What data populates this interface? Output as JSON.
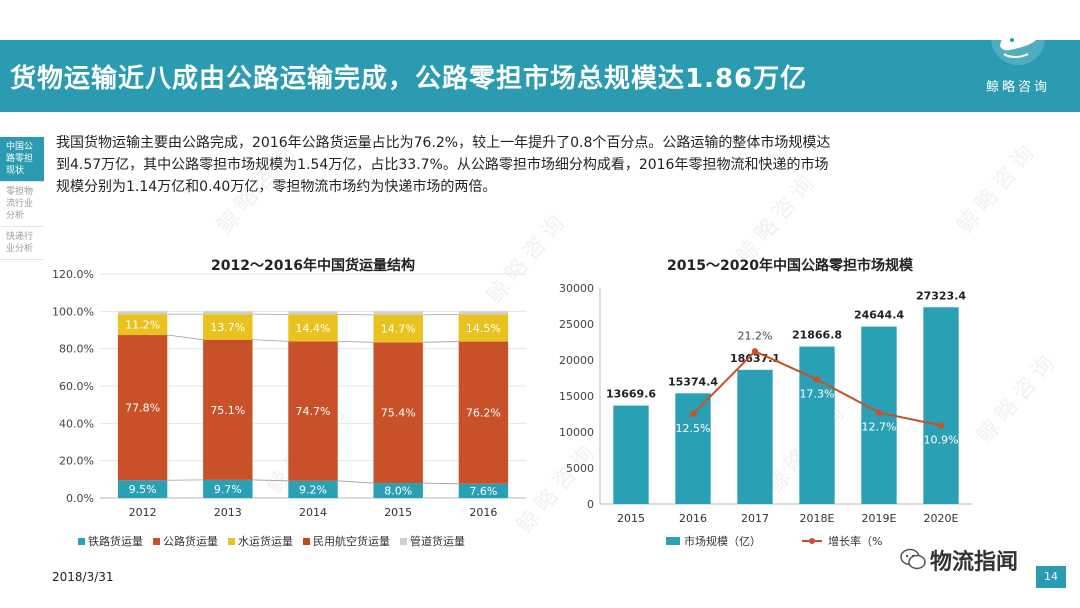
{
  "header": {
    "title": "货物运输近八成由公路运输完成，公路零担市场总规模达1.86万亿",
    "logo_text": "鲸略咨询"
  },
  "side_nav": [
    {
      "label": "中国公路零担现状",
      "active": true
    },
    {
      "label": "零担物流行业分析",
      "active": false
    },
    {
      "label": "快递行业分析",
      "active": false
    }
  ],
  "intro": {
    "line1": "我国货物运输主要由公路完成，2016年公路货运量占比为76.2%，较上一年提升了0.8个百分点。公路运输的整体市场规模达",
    "line2": "到4.57万亿，其中公路零担市场规模为1.54万亿，占比33.7%。从公路零担市场细分构成看，2016年零担物流和快递的市场",
    "line3": "规模分别为1.14万亿和0.40万亿，零担物流市场约为快递市场的两倍。"
  },
  "footer": {
    "date": "2018/3/31",
    "page_number": "14",
    "badge": "物流指闻"
  },
  "watermark": "鲸略咨询",
  "chart_data": [
    {
      "type": "bar",
      "stacked": true,
      "percent": true,
      "title": "2012～2016年中国货运量结构",
      "categories": [
        "2012",
        "2013",
        "2014",
        "2015",
        "2016"
      ],
      "yticks": [
        "0.0%",
        "20.0%",
        "40.0%",
        "60.0%",
        "80.0%",
        "100.0%",
        "120.0%"
      ],
      "ylim": [
        0,
        120
      ],
      "series": [
        {
          "name": "铁路货运量",
          "color": "#2aa0b5",
          "values": [
            9.5,
            9.7,
            9.2,
            8.0,
            7.6
          ],
          "labels": [
            "9.5%",
            "9.7%",
            "9.2%",
            "8.0%",
            "7.6%"
          ]
        },
        {
          "name": "公路货运量",
          "color": "#c8512a",
          "values": [
            77.8,
            75.1,
            74.7,
            75.4,
            76.2
          ],
          "labels": [
            "77.8%",
            "75.1%",
            "74.7%",
            "75.4%",
            "76.2%"
          ]
        },
        {
          "name": "水运货运量",
          "color": "#e8c21e",
          "values": [
            11.2,
            13.7,
            14.4,
            14.7,
            14.5
          ],
          "labels": [
            "11.2%",
            "13.7%",
            "14.4%",
            "14.7%",
            "14.5%"
          ]
        },
        {
          "name": "民用航空货运量",
          "color": "#b84a24",
          "values": [
            0.0,
            0.0,
            0.0,
            0.0,
            0.0
          ],
          "labels": []
        },
        {
          "name": "管道货运量",
          "color": "#cfcfcf",
          "values": [
            1.5,
            1.5,
            1.7,
            1.9,
            1.7
          ],
          "labels": []
        }
      ]
    },
    {
      "type": "bar+line",
      "title": "2015～2020年中国公路零担市场规模",
      "categories": [
        "2015",
        "2016",
        "2017",
        "2018E",
        "2019E",
        "2020E"
      ],
      "yticks": [
        "0",
        "5000",
        "10000",
        "15000",
        "20000",
        "25000",
        "30000"
      ],
      "ylim": [
        0,
        30000
      ],
      "bar_series": {
        "name": "市场规模（亿）",
        "color": "#2aa0b5",
        "values": [
          13669.6,
          15374.4,
          18637.1,
          21866.8,
          24644.4,
          27323.4
        ],
        "labels": [
          "13669.6",
          "15374.4",
          "18637.1",
          "21866.8",
          "24644.4",
          "27323.4"
        ]
      },
      "line_series": {
        "name": "增长率（%）",
        "color": "#c8512a",
        "values": [
          null,
          12.5,
          21.2,
          17.3,
          12.7,
          10.9
        ],
        "labels": [
          "",
          "12.5%",
          "21.2%",
          "17.3%",
          "12.7%",
          "10.9%"
        ]
      },
      "line_legend_visible": "增长率（%"
    }
  ]
}
